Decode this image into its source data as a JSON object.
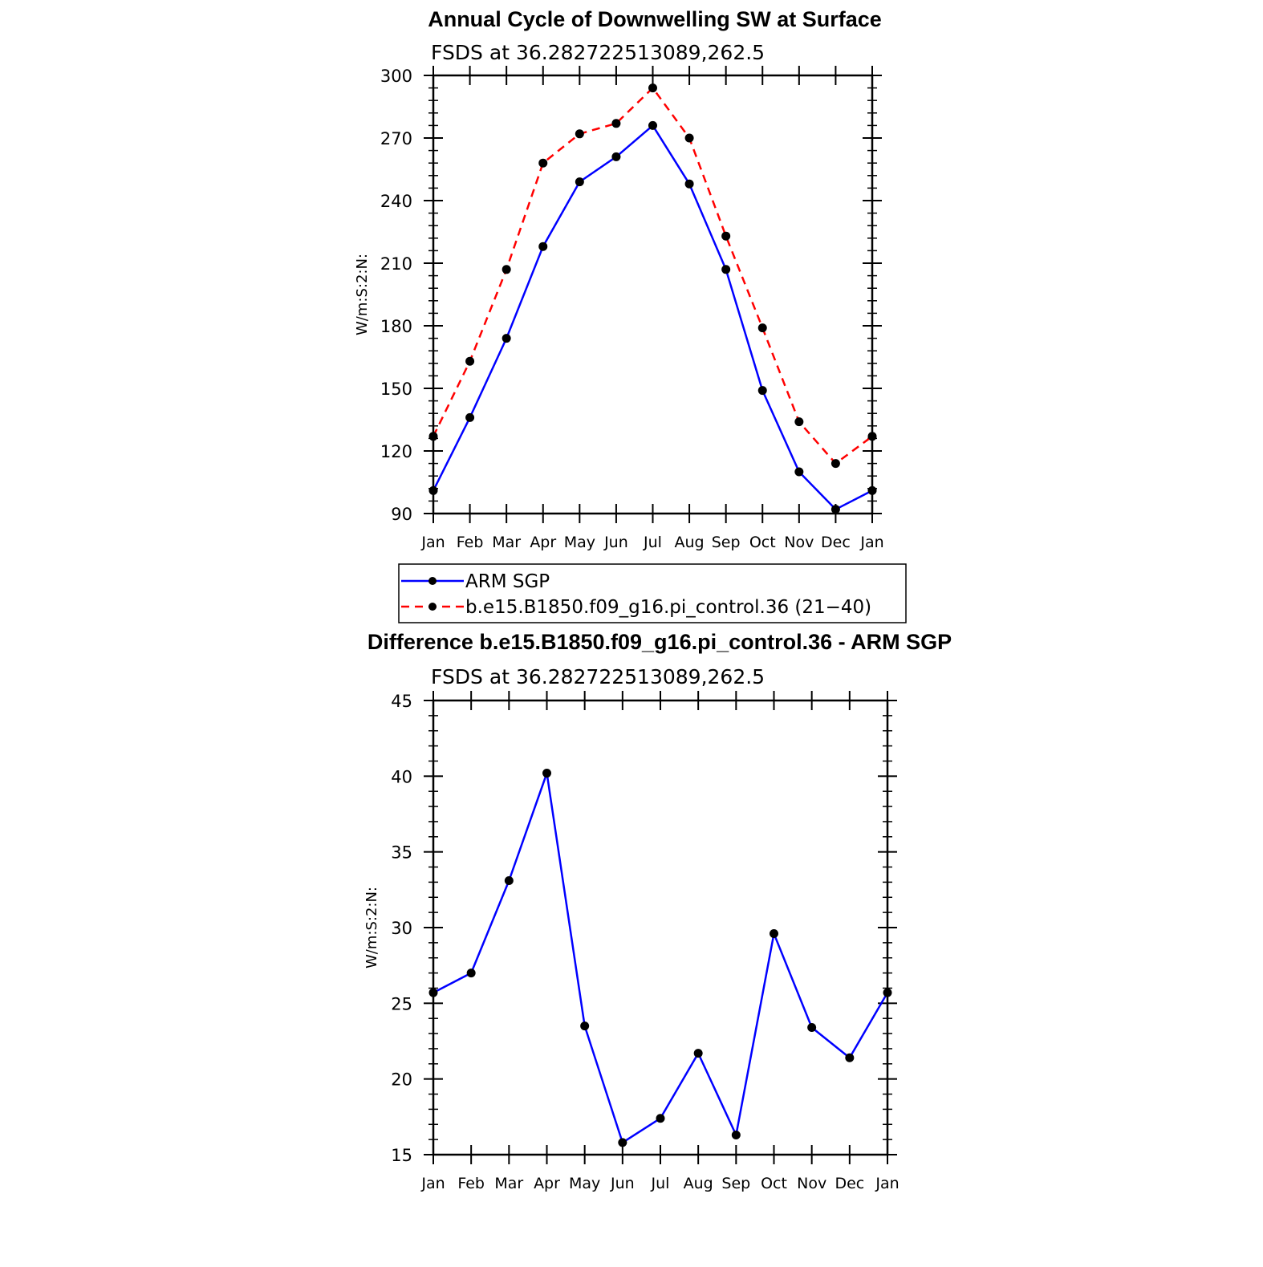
{
  "chart_data": [
    {
      "type": "line",
      "title": "Annual Cycle of Downwelling SW at Surface",
      "subtitle": "FSDS at 36.282722513089,262.5",
      "ylabel": "W/m:S:2:N:",
      "ylim": [
        90,
        300
      ],
      "yticks": [
        "90",
        "120",
        "150",
        "180",
        "210",
        "240",
        "270",
        "300"
      ],
      "categories": [
        "Jan",
        "Feb",
        "Mar",
        "Apr",
        "May",
        "Jun",
        "Jul",
        "Aug",
        "Sep",
        "Oct",
        "Nov",
        "Dec",
        "Jan"
      ],
      "series": [
        {
          "name": "ARM SGP",
          "color": "#0000ff",
          "dash": "solid",
          "values": [
            101,
            136,
            174,
            218,
            249,
            261,
            276,
            248,
            207,
            149,
            110,
            92,
            101
          ]
        },
        {
          "name": "b.e15.B1850.f09_g16.pi_control.36 (21−40)",
          "color": "#ff0000",
          "dash": "dashed",
          "values": [
            127,
            163,
            207,
            258,
            272,
            277,
            294,
            270,
            223,
            179,
            134,
            114,
            127
          ]
        }
      ],
      "legend_position": "bottom"
    },
    {
      "type": "line",
      "title": "Difference b.e15.B1850.f09_g16.pi_control.36 - ARM SGP",
      "subtitle": "FSDS at 36.282722513089,262.5",
      "ylabel": "W/m:S:2:N:",
      "ylim": [
        15,
        45
      ],
      "yticks": [
        "15",
        "20",
        "25",
        "30",
        "35",
        "40",
        "45"
      ],
      "categories": [
        "Jan",
        "Feb",
        "Mar",
        "Apr",
        "May",
        "Jun",
        "Jul",
        "Aug",
        "Sep",
        "Oct",
        "Nov",
        "Dec",
        "Jan"
      ],
      "series": [
        {
          "color": "#0000ff",
          "dash": "solid",
          "values": [
            25.7,
            27.0,
            33.1,
            40.2,
            23.5,
            15.8,
            17.4,
            21.7,
            16.3,
            29.6,
            23.4,
            21.4,
            25.7
          ]
        }
      ]
    }
  ]
}
